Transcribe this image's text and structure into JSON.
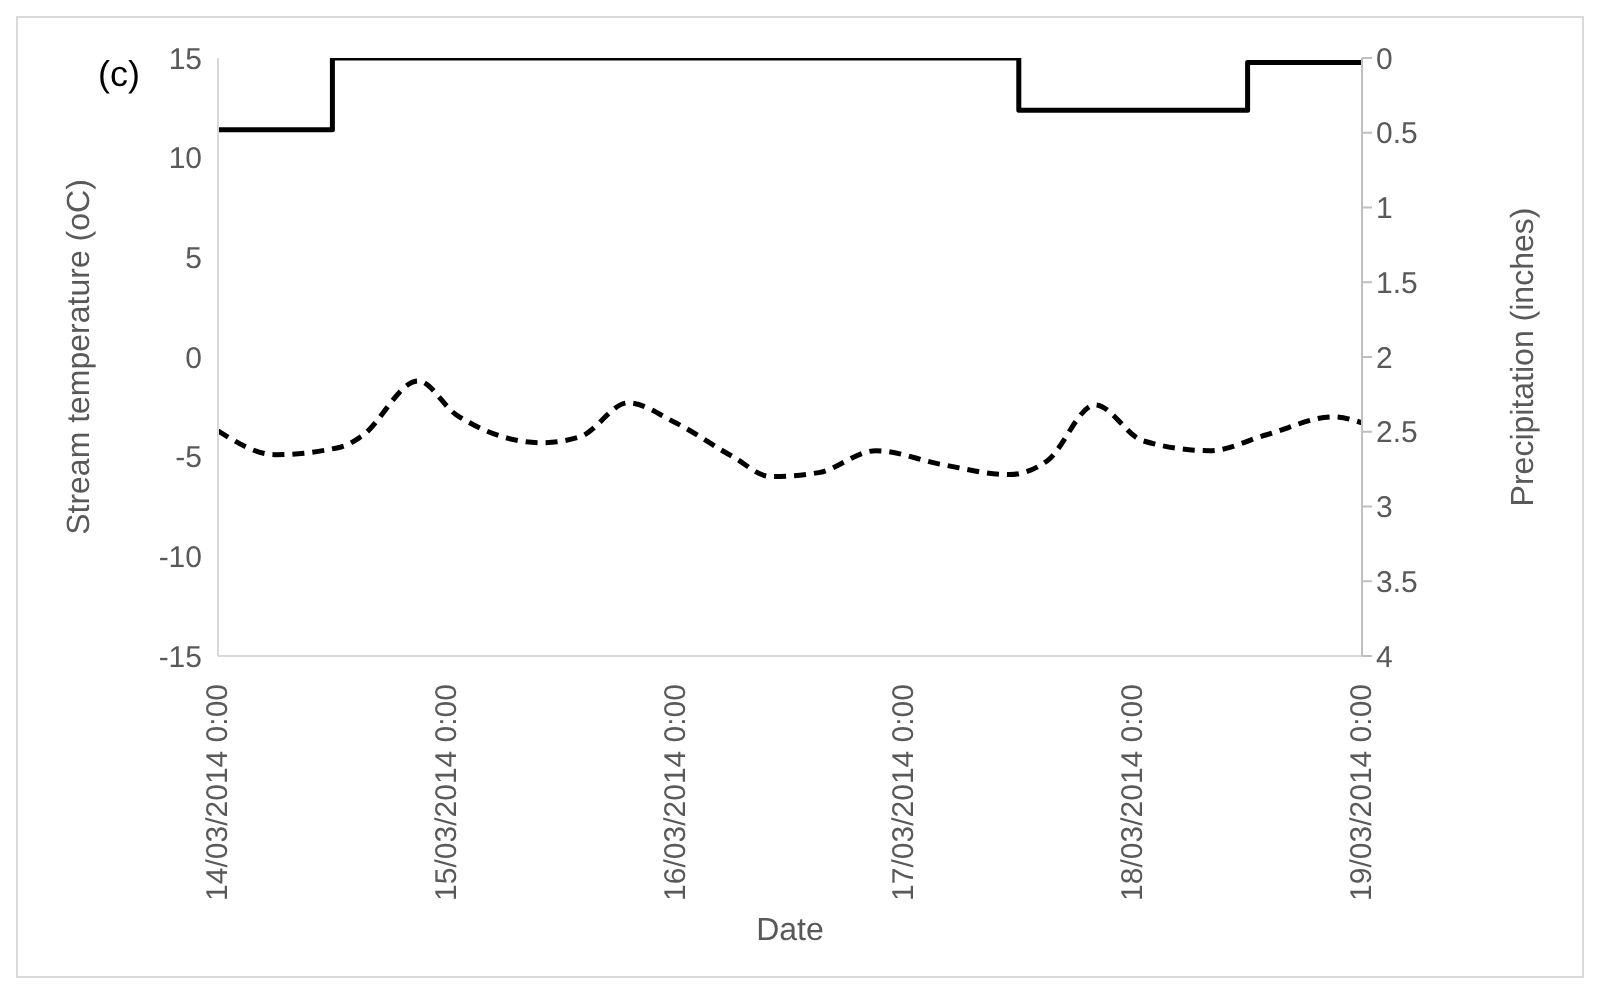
{
  "chart_data": {
    "type": "line",
    "title": "(c)",
    "xlabel": "Date",
    "ylabel": "Stream temperature (oC)",
    "y2label": "Precipitation (inches)",
    "xlim": [
      "2014-03-14T00:00",
      "2014-03-19T00:00"
    ],
    "xticks": [
      {
        "value": "2014-03-14T00:00",
        "label": "14/03/2014 0:00"
      },
      {
        "value": "2014-03-15T00:00",
        "label": "15/03/2014 0:00"
      },
      {
        "value": "2014-03-16T00:00",
        "label": "16/03/2014 0:00"
      },
      {
        "value": "2014-03-17T00:00",
        "label": "17/03/2014 0:00"
      },
      {
        "value": "2014-03-18T00:00",
        "label": "18/03/2014 0:00"
      },
      {
        "value": "2014-03-19T00:00",
        "label": "19/03/2014 0:00"
      }
    ],
    "ylim": [
      -15,
      15
    ],
    "yticks": [
      -15,
      -10,
      -5,
      0,
      5,
      10,
      15
    ],
    "y2lim": [
      4,
      0
    ],
    "y2ticks": [
      0,
      0.5,
      1,
      1.5,
      2,
      2.5,
      3,
      3.5,
      4
    ],
    "marker": "none",
    "series": [
      {
        "type": "step",
        "axis": "y2",
        "color": "#000000",
        "line_style": "solid",
        "x": [
          "2014-03-14T00:00",
          "2014-03-14T12:00",
          "2014-03-17T12:00",
          "2014-03-18T12:00",
          "2014-03-19T00:00"
        ],
        "values": [
          0.48,
          0,
          0.35,
          0.03,
          0.03
        ]
      },
      {
        "axis": "y",
        "color": "#000000",
        "line_style": "dashed",
        "x": [
          "2014-03-14T00:00",
          "2014-03-14T06:00",
          "2014-03-14T13:00",
          "2014-03-14T15:00",
          "2014-03-14T21:00",
          "2014-03-15T01:00",
          "2014-03-15T10:00",
          "2014-03-15T14:00",
          "2014-03-15T19:00",
          "2014-03-16T00:00",
          "2014-03-16T06:00",
          "2014-03-16T10:00",
          "2014-03-16T15:00",
          "2014-03-16T21:00",
          "2014-03-17T04:00",
          "2014-03-17T11:00",
          "2014-03-17T15:00",
          "2014-03-17T20:00",
          "2014-03-18T01:00",
          "2014-03-18T08:00",
          "2014-03-18T14:00",
          "2014-03-18T21:00",
          "2014-03-19T00:00"
        ],
        "values": [
          -3.7,
          -4.9,
          -4.5,
          -4.0,
          -1.2,
          -2.9,
          -4.3,
          -4.0,
          -2.3,
          -3.3,
          -5.0,
          -6.0,
          -5.8,
          -4.7,
          -5.4,
          -5.9,
          -5.2,
          -2.4,
          -4.2,
          -4.7,
          -3.9,
          -3.0,
          -3.3
        ]
      }
    ]
  }
}
